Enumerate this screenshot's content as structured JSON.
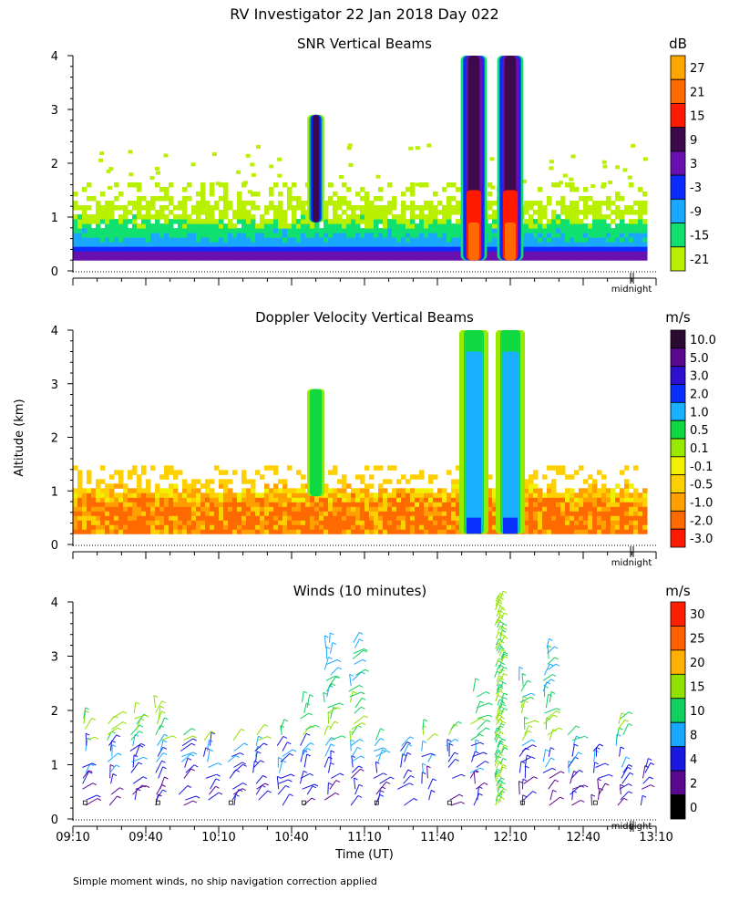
{
  "header": {
    "title": "RV Investigator  22 Jan 2018 Day 022"
  },
  "axis": {
    "ylabel": "Altitude (km)",
    "xlabel": "Time (UT)",
    "midnight_label": "midnight",
    "time_ticks": [
      "09:10",
      "09:40",
      "10:10",
      "10:40",
      "11:10",
      "11:40",
      "12:10",
      "12:40",
      "13:10"
    ],
    "alt_ticks": [
      "0",
      "1",
      "2",
      "3",
      "4"
    ]
  },
  "footnote": "Simple moment winds, no ship navigation correction applied",
  "chart_data": [
    {
      "type": "heatmap",
      "title": "SNR Vertical Beams",
      "ylabel": "Altitude (km)",
      "ylim": [
        0,
        4
      ],
      "x_range": [
        "09:10",
        "13:10"
      ],
      "colorbar": {
        "unit": "dB",
        "labels": [
          "27",
          "21",
          "15",
          "9",
          "3",
          "-3",
          "-9",
          "-15",
          "-21"
        ],
        "colors": [
          "#ffa500",
          "#ff6a00",
          "#ff1a00",
          "#3c0a4a",
          "#6a10b0",
          "#0a2aff",
          "#1aa8ff",
          "#10e070",
          "#b8f000"
        ]
      },
      "features": [
        {
          "type": "boundary_layer_echo",
          "altitude_km": [
            0.2,
            1.5
          ]
        },
        {
          "type": "precipitation_column",
          "time": "10:50",
          "altitude_km": [
            0.9,
            2.9
          ],
          "peak_dB": 9
        },
        {
          "type": "precipitation_column",
          "time": "11:55",
          "altitude_km": [
            0.2,
            4.0
          ],
          "peak_dB": 21
        },
        {
          "type": "precipitation_column",
          "time": "12:10",
          "altitude_km": [
            0.2,
            4.0
          ],
          "peak_dB": 21
        }
      ]
    },
    {
      "type": "heatmap",
      "title": "Doppler Velocity Vertical Beams",
      "ylabel": "Altitude (km)",
      "ylim": [
        0,
        4
      ],
      "x_range": [
        "09:10",
        "13:10"
      ],
      "colorbar": {
        "unit": "m/s",
        "labels": [
          "10.0",
          "5.0",
          "3.0",
          "2.0",
          "1.0",
          "0.5",
          "0.1",
          "-0.1",
          "-0.5",
          "-1.0",
          "-2.0",
          "-3.0"
        ],
        "colors": [
          "#2a0a30",
          "#5a0a90",
          "#3010d0",
          "#0a30ff",
          "#18b0ff",
          "#10d840",
          "#98e800",
          "#f0f000",
          "#ffd000",
          "#ffa000",
          "#ff6a00",
          "#ff1a00"
        ]
      },
      "features": [
        {
          "type": "boundary_layer_echo",
          "altitude_km": [
            0.2,
            1.0
          ],
          "velocity_m_s": -1.0
        },
        {
          "type": "precipitation_column",
          "time": "10:50",
          "altitude_km": [
            0.9,
            2.9
          ],
          "velocity_m_s": 0.5
        },
        {
          "type": "precipitation_column",
          "time": "11:55",
          "altitude_km": [
            0.2,
            4.0
          ],
          "velocity_m_s": 1.0
        },
        {
          "type": "precipitation_column",
          "time": "12:10",
          "altitude_km": [
            0.2,
            4.0
          ],
          "velocity_m_s": 1.0
        }
      ]
    },
    {
      "type": "scatter",
      "title": "Winds (10 minutes)",
      "ylabel": "Altitude (km)",
      "ylim": [
        0,
        4
      ],
      "x_range": [
        "09:10",
        "13:10"
      ],
      "colorbar": {
        "unit": "m/s",
        "labels": [
          "30",
          "25",
          "20",
          "15",
          "10",
          "8",
          "4",
          "2",
          "0"
        ],
        "colors": [
          "#ff2000",
          "#ff6000",
          "#ffb000",
          "#90e000",
          "#10d060",
          "#18a8ff",
          "#1818e0",
          "#5a0a90",
          "#000000"
        ]
      },
      "profiles": [
        {
          "time": "09:15",
          "top_km": 1.9
        },
        {
          "time": "09:25",
          "top_km": 1.9
        },
        {
          "time": "09:35",
          "top_km": 2.0
        },
        {
          "time": "09:45",
          "top_km": 2.1
        },
        {
          "time": "09:55",
          "top_km": 1.6
        },
        {
          "time": "10:05",
          "top_km": 1.5
        },
        {
          "time": "10:15",
          "top_km": 1.5
        },
        {
          "time": "10:25",
          "top_km": 1.6
        },
        {
          "time": "10:35",
          "top_km": 1.7
        },
        {
          "time": "10:45",
          "top_km": 2.2
        },
        {
          "time": "10:55",
          "top_km": 3.3
        },
        {
          "time": "11:05",
          "top_km": 3.3
        },
        {
          "time": "11:15",
          "top_km": 1.5
        },
        {
          "time": "11:25",
          "top_km": 1.5
        },
        {
          "time": "11:35",
          "top_km": 1.7
        },
        {
          "time": "11:45",
          "top_km": 1.7
        },
        {
          "time": "11:55",
          "top_km": 2.4
        },
        {
          "time": "12:05",
          "top_km": 4.1
        },
        {
          "time": "12:15",
          "top_km": 2.6
        },
        {
          "time": "12:25",
          "top_km": 3.2
        },
        {
          "time": "12:35",
          "top_km": 1.6
        },
        {
          "time": "12:45",
          "top_km": 1.3
        },
        {
          "time": "12:55",
          "top_km": 1.9
        },
        {
          "time": "13:05",
          "top_km": 1.0
        }
      ]
    }
  ]
}
